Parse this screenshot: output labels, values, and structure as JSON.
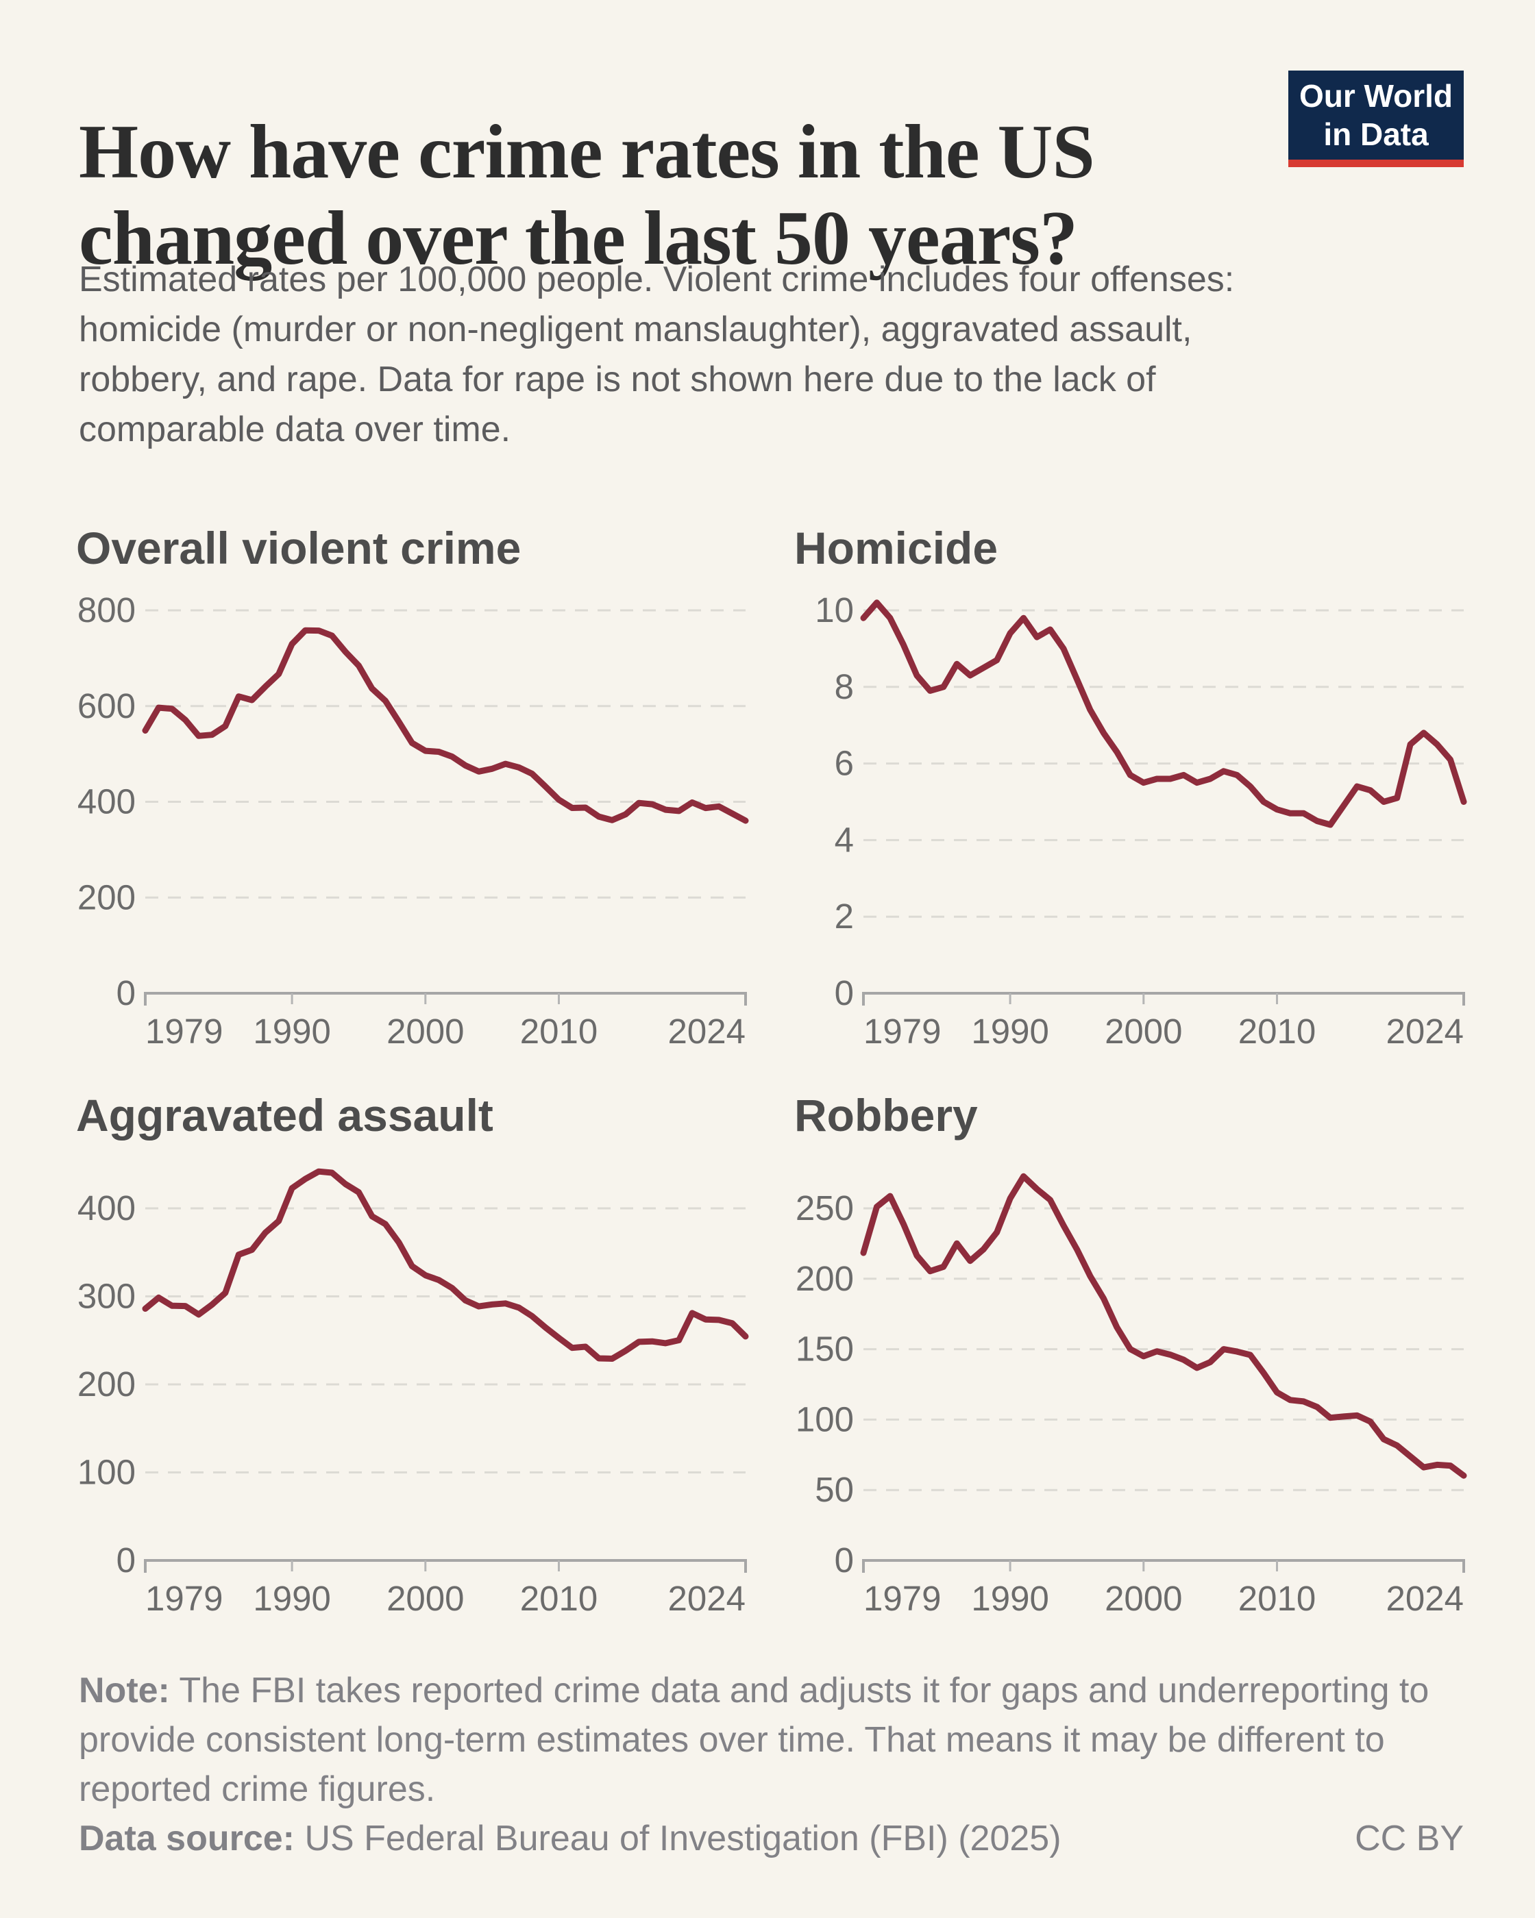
{
  "colors": {
    "background": "#f7f4ed",
    "line": "#8e2c3c",
    "gridline": "#dcdad4",
    "axis": "#a6a6a6",
    "logo_bg": "#10294c",
    "logo_stripe": "#d73a32"
  },
  "header": {
    "title_lines": [
      "How have crime rates in the US",
      "changed over the last 50 years?"
    ],
    "subtitle": "Estimated rates per 100,000 people. Violent crime includes four offenses: homicide (murder or non-negligent manslaughter), aggravated assault, robbery, and rape. Data for rape is not shown here due to the lack of comparable data over time."
  },
  "logo": {
    "line1": "Our World",
    "line2": "in Data"
  },
  "chart_data": [
    {
      "key": "overall_violent_crime",
      "type": "line",
      "title": "Overall violent crime",
      "ylim": [
        0,
        800
      ],
      "yticks": [
        0,
        200,
        400,
        600,
        800
      ],
      "xticks": [
        1979,
        1990,
        2000,
        2010,
        2024
      ],
      "year_start": 1979,
      "year_end": 2024,
      "line_color": "#8e2c3c",
      "grid": "dashed-horizontal",
      "values": [
        548.9,
        596.6,
        594.3,
        571.1,
        537.7,
        539.9,
        558.1,
        620.1,
        612.5,
        640.6,
        666.9,
        729.6,
        758.2,
        757.7,
        747.1,
        713.6,
        684.5,
        636.6,
        611.0,
        567.6,
        523.0,
        506.5,
        504.5,
        494.4,
        475.8,
        463.2,
        469.0,
        479.3,
        471.8,
        458.6,
        431.9,
        404.5,
        387.1,
        387.8,
        369.1,
        361.6,
        373.7,
        397.5,
        394.9,
        383.4,
        380.8,
        398.5,
        387.0,
        390.2,
        375.5,
        360.5
      ]
    },
    {
      "key": "homicide",
      "type": "line",
      "title": "Homicide",
      "ylim": [
        0,
        10
      ],
      "yticks": [
        0,
        2,
        4,
        6,
        8,
        10
      ],
      "xticks": [
        1979,
        1990,
        2000,
        2010,
        2024
      ],
      "year_start": 1979,
      "year_end": 2024,
      "line_color": "#8e2c3c",
      "grid": "dashed-horizontal",
      "values": [
        9.8,
        10.2,
        9.8,
        9.1,
        8.3,
        7.9,
        8.0,
        8.6,
        8.3,
        8.5,
        8.7,
        9.4,
        9.8,
        9.3,
        9.5,
        9.0,
        8.2,
        7.4,
        6.8,
        6.3,
        5.7,
        5.5,
        5.6,
        5.6,
        5.7,
        5.5,
        5.6,
        5.8,
        5.7,
        5.4,
        5.0,
        4.8,
        4.7,
        4.7,
        4.5,
        4.4,
        4.9,
        5.4,
        5.3,
        5.0,
        5.1,
        6.5,
        6.8,
        6.5,
        6.1,
        5.0
      ]
    },
    {
      "key": "aggravated_assault",
      "type": "line",
      "title": "Aggravated assault",
      "ylim": [
        0,
        400
      ],
      "yticks": [
        0,
        100,
        200,
        300,
        400
      ],
      "xticks": [
        1979,
        1990,
        2000,
        2010,
        2024
      ],
      "year_start": 1979,
      "year_end": 2024,
      "line_color": "#8e2c3c",
      "grid": "dashed-horizontal",
      "values": [
        286.0,
        298.5,
        289.3,
        289.0,
        279.4,
        290.6,
        304.0,
        347.4,
        352.9,
        372.4,
        385.6,
        422.9,
        433.4,
        441.9,
        440.5,
        427.6,
        418.3,
        391.0,
        382.1,
        361.4,
        334.3,
        324.0,
        318.6,
        309.5,
        295.4,
        288.6,
        290.8,
        292.0,
        287.2,
        277.5,
        264.7,
        252.8,
        241.5,
        242.8,
        229.6,
        229.2,
        238.1,
        248.3,
        248.9,
        246.8,
        250.2,
        281.0,
        273.8,
        273.2,
        269.5,
        254.5
      ]
    },
    {
      "key": "robbery",
      "type": "line",
      "title": "Robbery",
      "ylim": [
        0,
        250
      ],
      "yticks": [
        0,
        50,
        100,
        150,
        200,
        250
      ],
      "xticks": [
        1979,
        1990,
        2000,
        2010,
        2024
      ],
      "year_start": 1979,
      "year_end": 2024,
      "line_color": "#8e2c3c",
      "grid": "dashed-horizontal",
      "values": [
        218.4,
        251.1,
        258.7,
        238.9,
        216.5,
        205.4,
        208.5,
        225.1,
        212.7,
        220.9,
        233.0,
        257.0,
        272.7,
        263.7,
        256.0,
        237.8,
        220.9,
        201.9,
        186.1,
        165.5,
        150.1,
        145.0,
        148.5,
        146.1,
        142.5,
        136.7,
        140.8,
        150.0,
        148.3,
        145.9,
        133.1,
        119.3,
        113.9,
        112.9,
        109.0,
        101.3,
        102.2,
        102.9,
        98.6,
        86.1,
        81.6,
        73.9,
        66.1,
        67.9,
        67.3,
        60.2
      ]
    }
  ],
  "footer": {
    "note_label": "Note:",
    "note_text": "The FBI takes reported crime data and adjusts it for gaps and underreporting to provide consistent long-term estimates over time. That means it may be different to reported crime figures.",
    "source_label": "Data source:",
    "source_text": "US Federal Bureau of Investigation (FBI) (2025)",
    "license": "CC BY"
  }
}
